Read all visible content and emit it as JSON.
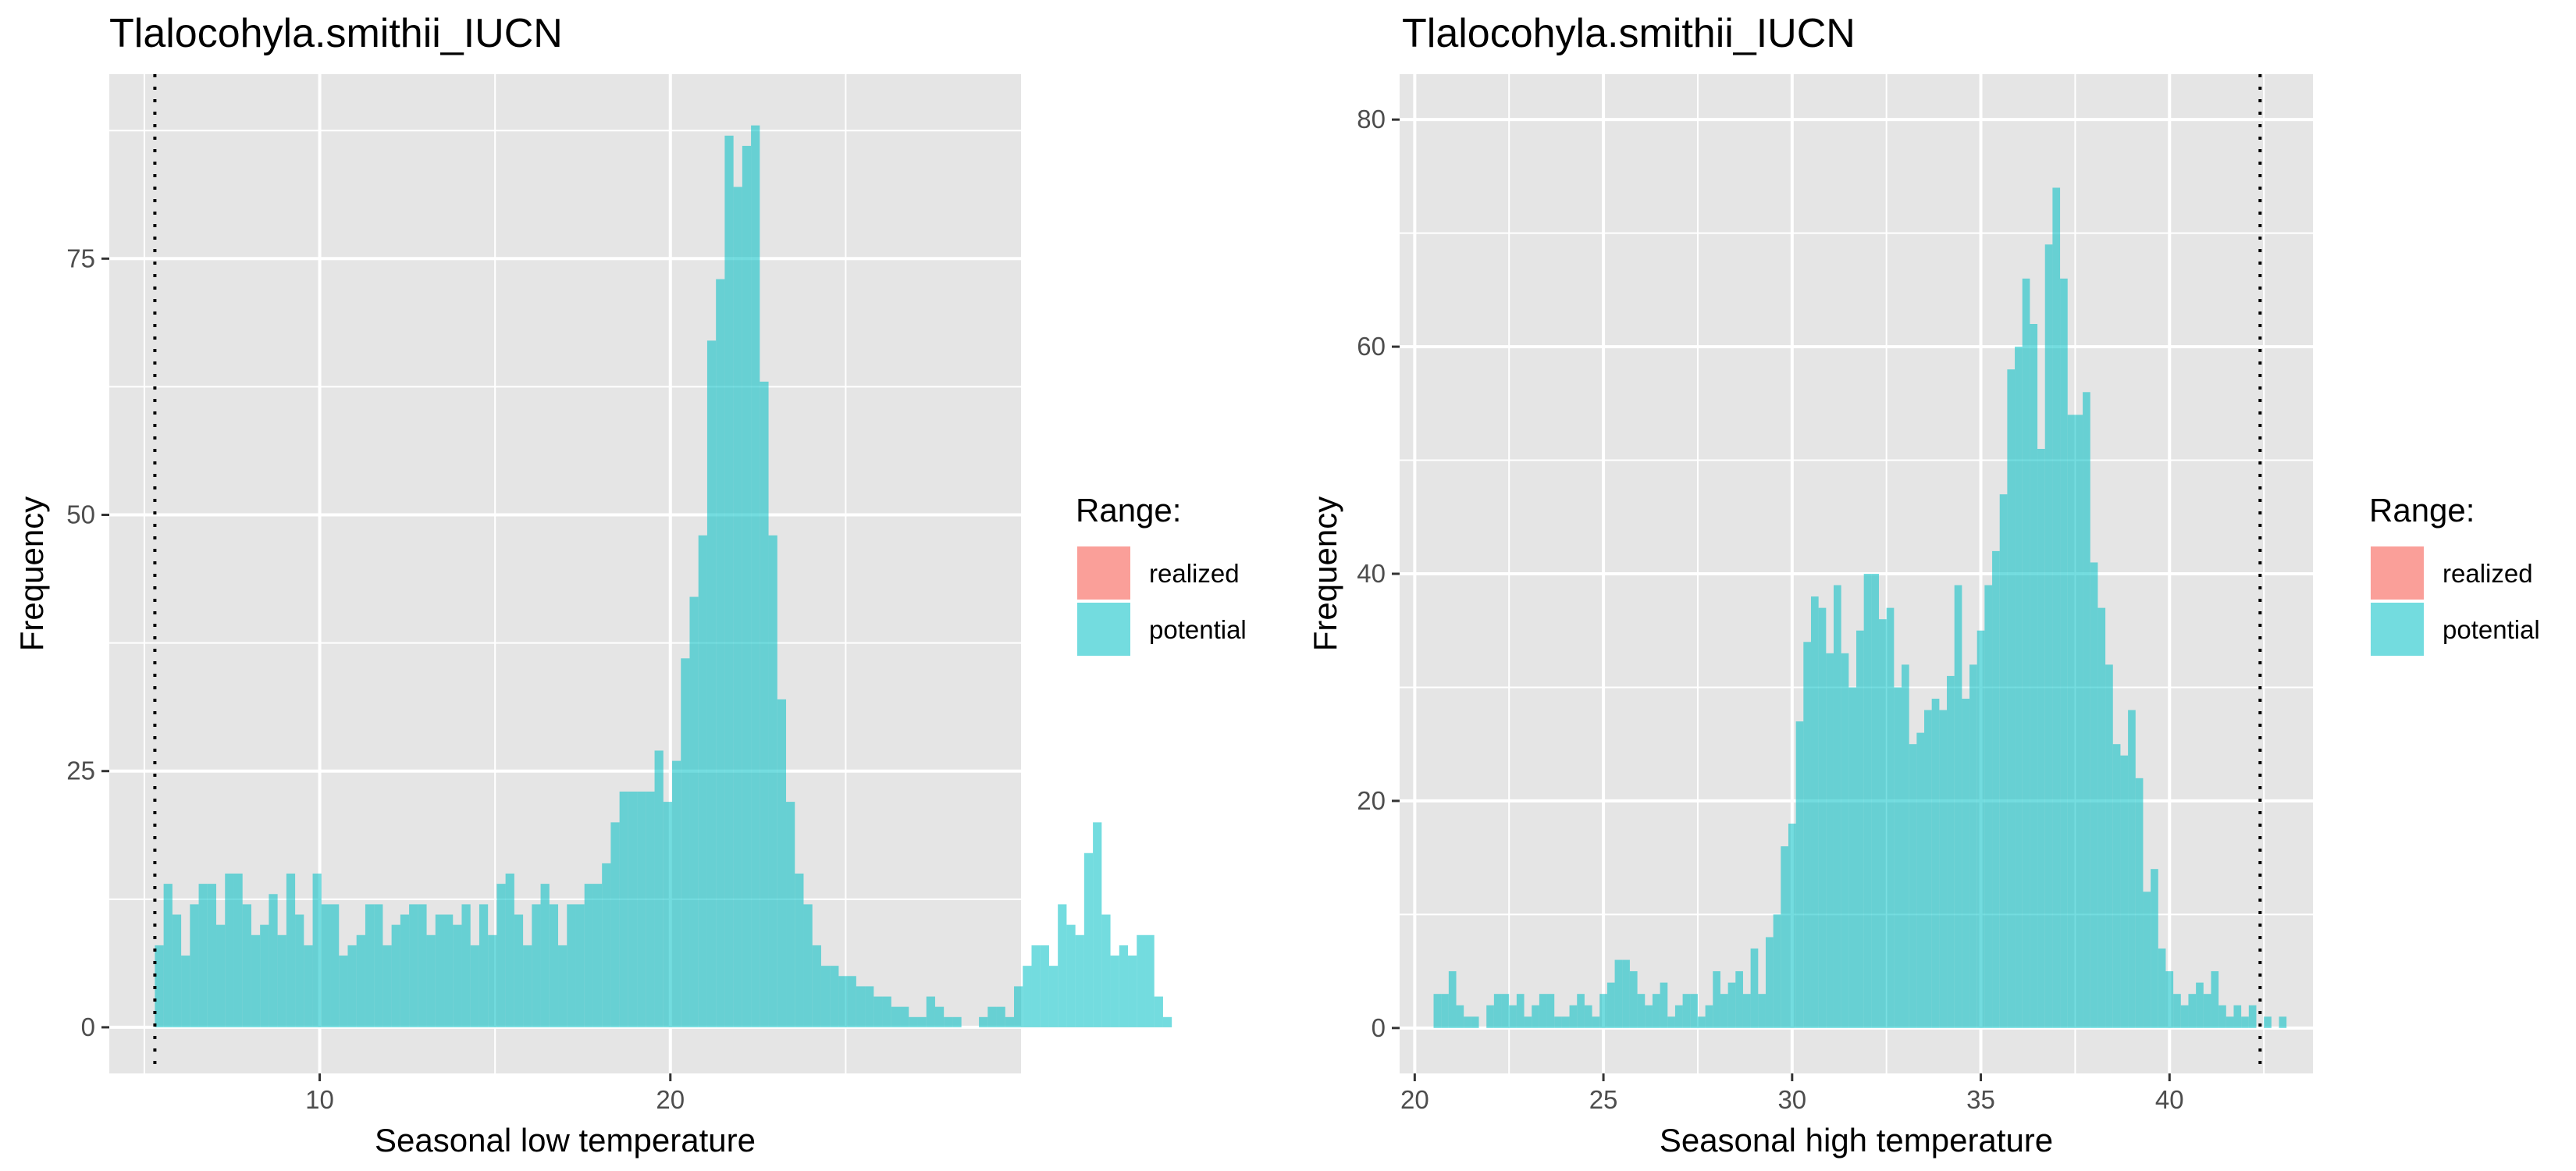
{
  "colors": {
    "realized": "#F8766D",
    "potential": "#00BFC4",
    "panel_bg": "#E5E5E5",
    "grid": "#FFFFFF",
    "tick_text": "#4D4D4D",
    "vline": "#000000"
  },
  "chart_data": [
    {
      "type": "histogram",
      "title": "Tlalocohyla.smithii_IUCN",
      "xlabel": "Seasonal low temperature",
      "ylabel": "Frequency",
      "xlim": [
        4.0,
        30.0
      ],
      "ylim": [
        -4.5,
        93.0
      ],
      "x_ticks": [
        10,
        20
      ],
      "x_tick_labels": [
        "10",
        "20"
      ],
      "y_ticks": [
        0,
        25,
        50,
        75
      ],
      "y_tick_labels": [
        "0",
        "25",
        "50",
        "75"
      ],
      "grid": true,
      "bin_start": 5.3,
      "bin_width": 0.25,
      "reference_line_x": 5.3,
      "legend": {
        "title": "Range:",
        "position": "right",
        "entries": [
          "realized",
          "potential"
        ]
      },
      "series": [
        {
          "name": "potential",
          "values": [
            8,
            14,
            11,
            7,
            12,
            14,
            14,
            10,
            15,
            15,
            12,
            9,
            10,
            13,
            9,
            15,
            11,
            8,
            15,
            12,
            12,
            7,
            8,
            9,
            12,
            12,
            8,
            10,
            11,
            12,
            12,
            9,
            11,
            11,
            10,
            12,
            8,
            12,
            9,
            14,
            15,
            11,
            8,
            12,
            14,
            12,
            8,
            12,
            12,
            14,
            14,
            16,
            20,
            23,
            23,
            23,
            23,
            27,
            22,
            26,
            36,
            42,
            48,
            67,
            73,
            87,
            82,
            86,
            88,
            63,
            48,
            32,
            22,
            15,
            12,
            8,
            6,
            6,
            5,
            5,
            4,
            4,
            3,
            3,
            2,
            2,
            1,
            1,
            3,
            2,
            1,
            1,
            0,
            0,
            1,
            2,
            2,
            1,
            4,
            6,
            8,
            8,
            6,
            12,
            10,
            9,
            17,
            20,
            11,
            7,
            8,
            7,
            9,
            9,
            3,
            1
          ]
        },
        {
          "name": "realized",
          "values": [
            0,
            0,
            0,
            0,
            0,
            0,
            0,
            0,
            0,
            0,
            0,
            0,
            0,
            0,
            0,
            0,
            0,
            0,
            0,
            0,
            0,
            0,
            0,
            0,
            0,
            0,
            0,
            0,
            0,
            0,
            0,
            0,
            0,
            0,
            0,
            0,
            0,
            0,
            0,
            0,
            0,
            0,
            0,
            0,
            0,
            0,
            0,
            0,
            0,
            0,
            0,
            0,
            0,
            0,
            0,
            0,
            0,
            0,
            0,
            0,
            0,
            0,
            0,
            0,
            0,
            0,
            0,
            0,
            0,
            0,
            0,
            0,
            0,
            0,
            0,
            0,
            0,
            0,
            0,
            0,
            0,
            0,
            0,
            0,
            0,
            0,
            0,
            0,
            0,
            0,
            0,
            0,
            0,
            0,
            0,
            0,
            0,
            0,
            0,
            0,
            0,
            0,
            0,
            0,
            0,
            0,
            0,
            0,
            0,
            0,
            0,
            0,
            0,
            0,
            0,
            0
          ]
        }
      ]
    },
    {
      "type": "histogram",
      "title": "Tlalocohyla.smithii_IUCN",
      "xlabel": "Seasonal high temperature",
      "ylabel": "Frequency",
      "xlim": [
        19.6,
        43.8
      ],
      "ylim": [
        -4.0,
        84.0
      ],
      "x_ticks": [
        20,
        25,
        30,
        35,
        40
      ],
      "x_tick_labels": [
        "20",
        "25",
        "30",
        "35",
        "40"
      ],
      "y_ticks": [
        0,
        20,
        40,
        60,
        80
      ],
      "y_tick_labels": [
        "0",
        "20",
        "40",
        "60",
        "80"
      ],
      "grid": true,
      "bin_start": 20.5,
      "bin_width": 0.2,
      "reference_line_x": 42.4,
      "legend": {
        "title": "Range:",
        "position": "right",
        "entries": [
          "realized",
          "potential"
        ]
      },
      "series": [
        {
          "name": "potential",
          "values": [
            3,
            3,
            5,
            2,
            1,
            1,
            0,
            2,
            3,
            3,
            2,
            3,
            1,
            2,
            3,
            3,
            1,
            1,
            2,
            3,
            2,
            1,
            3,
            4,
            6,
            6,
            5,
            3,
            2,
            3,
            4,
            1,
            2,
            3,
            3,
            1,
            2,
            5,
            3,
            4,
            5,
            3,
            7,
            3,
            8,
            10,
            16,
            18,
            27,
            34,
            38,
            37,
            33,
            39,
            33,
            30,
            35,
            40,
            40,
            36,
            37,
            30,
            32,
            25,
            26,
            28,
            29,
            28,
            31,
            39,
            29,
            32,
            35,
            39,
            42,
            47,
            58,
            60,
            66,
            62,
            51,
            69,
            74,
            66,
            54,
            54,
            56,
            41,
            37,
            32,
            25,
            24,
            28,
            22,
            12,
            14,
            7,
            5,
            3,
            2,
            3,
            4,
            3,
            5,
            2,
            1,
            2,
            1,
            2,
            0,
            1,
            0,
            1,
            0,
            0
          ]
        },
        {
          "name": "realized",
          "values": [
            0,
            0,
            0,
            0,
            0,
            0,
            0,
            0,
            0,
            0,
            0,
            0,
            0,
            0,
            0,
            0,
            0,
            0,
            0,
            0,
            0,
            0,
            0,
            0,
            0,
            0,
            0,
            0,
            0,
            0,
            0,
            0,
            0,
            0,
            0,
            0,
            0,
            0,
            0,
            0,
            0,
            0,
            0,
            0,
            0,
            0,
            0,
            0,
            0,
            0,
            0,
            0,
            0,
            0,
            0,
            0,
            0,
            0,
            0,
            0,
            0,
            0,
            0,
            0,
            0,
            0,
            0,
            0,
            0,
            0,
            0,
            0,
            0,
            0,
            0,
            0,
            0,
            0,
            0,
            0,
            0,
            0,
            0,
            0,
            0,
            0,
            0,
            0,
            0,
            0,
            0,
            0,
            0,
            0,
            0,
            0,
            0,
            0,
            0,
            0,
            0,
            0,
            0,
            0,
            0,
            0,
            0,
            0,
            0,
            0,
            0,
            0,
            0,
            0,
            0,
            0
          ]
        }
      ]
    }
  ]
}
